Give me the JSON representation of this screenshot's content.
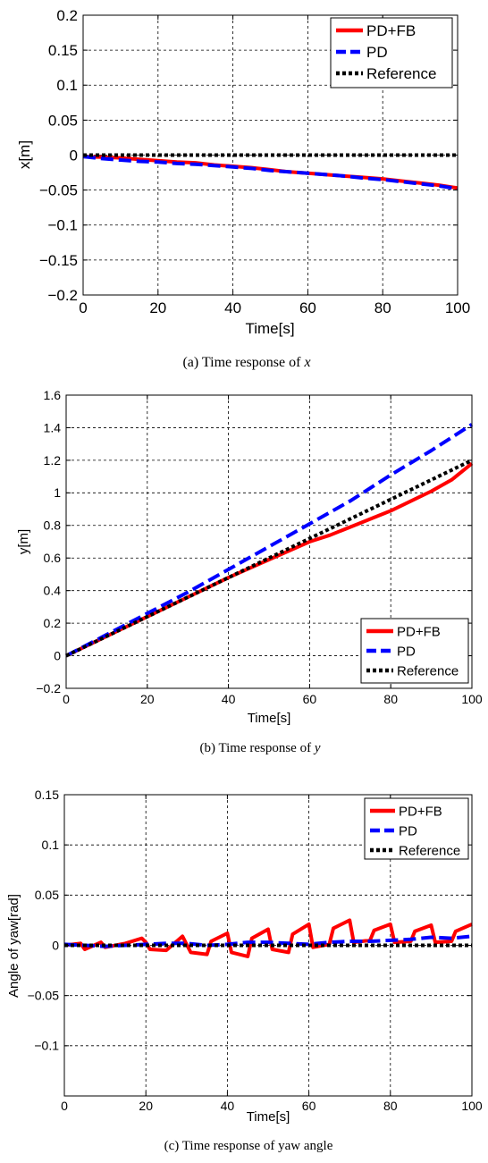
{
  "chart_data": [
    {
      "type": "line",
      "panel": "a",
      "caption": "(a) Time response of ",
      "caption_var": "x",
      "xlabel": "Time[s]",
      "ylabel": "x[m]",
      "xlim": [
        0,
        100
      ],
      "ylim": [
        -0.2,
        0.2
      ],
      "xticks": [
        "0",
        "20",
        "40",
        "60",
        "80",
        "100"
      ],
      "yticks": [
        "0.2",
        "0.15",
        "0.1",
        "0.05",
        "0",
        "−0.05",
        "−0.1",
        "−0.15",
        "−0.2"
      ],
      "grid": true,
      "legend_position": "top-right",
      "series": [
        {
          "name": "PD+FB",
          "color": "#ff0000",
          "style": "solid",
          "x": [
            0,
            5,
            10,
            15,
            20,
            25,
            30,
            35,
            40,
            45,
            50,
            55,
            60,
            65,
            70,
            75,
            80,
            85,
            90,
            95,
            100
          ],
          "y": [
            -0.002,
            -0.003,
            -0.004,
            -0.006,
            -0.008,
            -0.01,
            -0.011,
            -0.014,
            -0.016,
            -0.018,
            -0.021,
            -0.024,
            -0.026,
            -0.028,
            -0.03,
            -0.032,
            -0.034,
            -0.037,
            -0.04,
            -0.043,
            -0.047
          ]
        },
        {
          "name": "PD",
          "color": "#0000ff",
          "style": "dash",
          "x": [
            0,
            5,
            10,
            15,
            20,
            25,
            30,
            35,
            40,
            45,
            50,
            55,
            60,
            65,
            70,
            75,
            80,
            85,
            90,
            95,
            100
          ],
          "y": [
            -0.002,
            -0.005,
            -0.007,
            -0.009,
            -0.01,
            -0.012,
            -0.013,
            -0.015,
            -0.017,
            -0.019,
            -0.022,
            -0.024,
            -0.026,
            -0.028,
            -0.03,
            -0.033,
            -0.035,
            -0.038,
            -0.041,
            -0.044,
            -0.048
          ]
        },
        {
          "name": "Reference",
          "color": "#000000",
          "style": "dot",
          "x": [
            0,
            100
          ],
          "y": [
            0,
            0
          ]
        }
      ]
    },
    {
      "type": "line",
      "panel": "b",
      "caption": "(b)    Time response of ",
      "caption_var": "y",
      "xlabel": "Time[s]",
      "ylabel": "y[m]",
      "xlim": [
        0,
        100
      ],
      "ylim": [
        -0.2,
        1.6
      ],
      "xticks": [
        "0",
        "20",
        "40",
        "60",
        "80",
        "100"
      ],
      "yticks": [
        "1.6",
        "1.4",
        "1.2",
        "1",
        "0.8",
        "0.6",
        "0.4",
        "0.2",
        "0",
        "−0.2"
      ],
      "grid": true,
      "legend_position": "bottom-right",
      "series": [
        {
          "name": "PD+FB",
          "color": "#ff0000",
          "style": "solid",
          "x": [
            0,
            10,
            20,
            30,
            40,
            50,
            60,
            65,
            70,
            75,
            80,
            85,
            90,
            95,
            100
          ],
          "y": [
            0,
            0.12,
            0.24,
            0.36,
            0.48,
            0.59,
            0.7,
            0.74,
            0.79,
            0.84,
            0.89,
            0.95,
            1.01,
            1.08,
            1.18
          ]
        },
        {
          "name": "PD",
          "color": "#0000ff",
          "style": "dash",
          "x": [
            0,
            10,
            20,
            30,
            40,
            50,
            60,
            70,
            80,
            90,
            100
          ],
          "y": [
            0,
            0.13,
            0.26,
            0.39,
            0.53,
            0.67,
            0.81,
            0.95,
            1.11,
            1.26,
            1.42
          ]
        },
        {
          "name": "Reference",
          "color": "#000000",
          "style": "dot",
          "x": [
            0,
            100
          ],
          "y": [
            0,
            1.2
          ]
        }
      ]
    },
    {
      "type": "line",
      "panel": "c",
      "caption": "(c) Time response of yaw angle",
      "caption_var": "",
      "xlabel": "Time[s]",
      "ylabel": "Angle of yaw[rad]",
      "xlim": [
        0,
        100
      ],
      "ylim": [
        -0.15,
        0.15
      ],
      "xticks": [
        "0",
        "20",
        "40",
        "60",
        "80",
        "100"
      ],
      "yticks": [
        "0.15",
        "0.1",
        "0.05",
        "0",
        "−0.05",
        "−0.1"
      ],
      "grid": true,
      "legend_position": "top-right",
      "series": [
        {
          "name": "PD+FB",
          "color": "#ff0000",
          "style": "solid",
          "x": [
            0,
            4,
            5,
            9,
            10,
            15,
            19,
            20,
            21,
            25,
            29,
            30,
            31,
            35,
            36,
            40,
            41,
            45,
            46,
            50,
            51,
            55,
            56,
            60,
            61,
            65,
            66,
            70,
            71,
            75,
            76,
            80,
            81,
            85,
            86,
            90,
            91,
            95,
            96,
            100
          ],
          "y": [
            0,
            0.002,
            -0.004,
            0.003,
            -0.002,
            0.002,
            0.007,
            0.003,
            -0.004,
            -0.005,
            0.009,
            0.001,
            -0.007,
            -0.009,
            0.004,
            0.012,
            -0.007,
            -0.011,
            0.007,
            0.016,
            -0.004,
            -0.007,
            0.011,
            0.021,
            -0.002,
            0.001,
            0.017,
            0.025,
            0.003,
            0.005,
            0.015,
            0.021,
            0.003,
            0.004,
            0.014,
            0.02,
            0.003,
            0.004,
            0.014,
            0.021
          ]
        },
        {
          "name": "PD",
          "color": "#0000ff",
          "style": "dash",
          "x": [
            0,
            5,
            10,
            15,
            20,
            25,
            30,
            35,
            40,
            45,
            50,
            55,
            60,
            65,
            70,
            75,
            80,
            85,
            90,
            95,
            100
          ],
          "y": [
            0.001,
            0,
            -0.001,
            0,
            0.001,
            0.002,
            0.002,
            0,
            0.001,
            0.003,
            0.003,
            0.002,
            0.001,
            0.003,
            0.004,
            0.004,
            0.005,
            0.006,
            0.008,
            0.007,
            0.009
          ]
        },
        {
          "name": "Reference",
          "color": "#000000",
          "style": "dot",
          "x": [
            0,
            100
          ],
          "y": [
            0,
            0
          ]
        }
      ]
    }
  ]
}
